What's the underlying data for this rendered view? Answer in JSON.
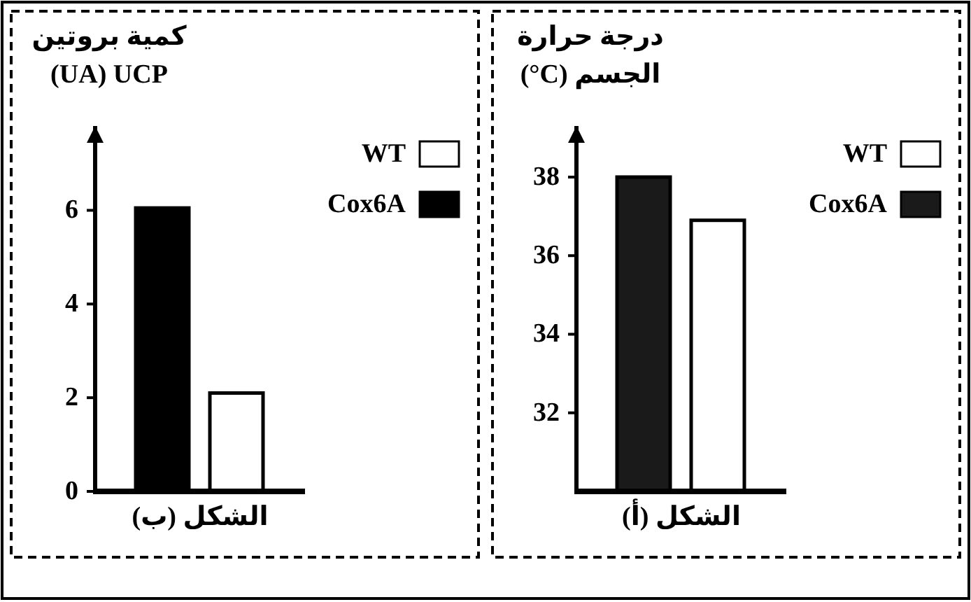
{
  "chart_data": [
    {
      "type": "bar",
      "xlabel": "الشكل (ب)",
      "ylabel": "كمية بروتين (UA) UCP",
      "categories": [
        null
      ],
      "legend": "top right",
      "tick_labels": "y",
      "ylim": [
        0,
        7.8
      ],
      "yticks": [
        0,
        2,
        4,
        6
      ],
      "series": [
        {
          "name": "Cox6A",
          "color": "#000000",
          "values": [
            6.05
          ]
        },
        {
          "name": "WT",
          "color": "#ffffff",
          "values": [
            2.1
          ]
        }
      ]
    },
    {
      "type": "bar",
      "xlabel": "الشكل (أ)",
      "ylabel": "درجة حرارة الجسم (°C)",
      "categories": [
        null
      ],
      "legend": "top right",
      "tick_labels": "y",
      "ylim": [
        30,
        39.3
      ],
      "yticks": [
        32,
        34,
        36,
        38
      ],
      "series": [
        {
          "name": "Cox6A",
          "color": "#1a1a1a",
          "values": [
            38.0
          ]
        },
        {
          "name": "WT",
          "color": "#ffffff",
          "values": [
            36.9
          ]
        }
      ]
    }
  ]
}
